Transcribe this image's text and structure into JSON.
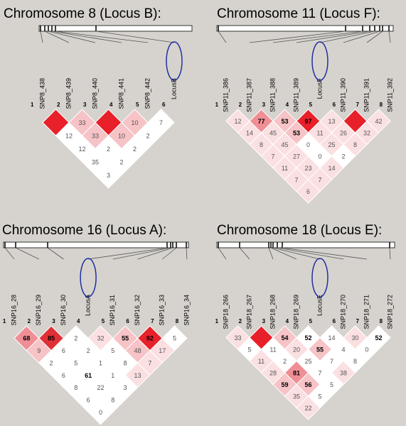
{
  "panels": [
    {
      "title": "Chromosome 8 (Locus B):",
      "markers": [
        "SNP8_438",
        "SNP8_439",
        "SNP8_440",
        "SNP8_441",
        "SNP8_442",
        "LocusB"
      ],
      "indices": [
        1,
        2,
        3,
        4,
        5,
        6
      ],
      "cells": [
        [
          null,
          33,
          null,
          10,
          7
        ],
        [
          12,
          33,
          10,
          2
        ],
        [
          12,
          2,
          2
        ],
        [
          35,
          2
        ],
        [
          3
        ]
      ],
      "cell_colors": [
        [
          "#e8202a",
          "#f6c3c7",
          "#e8202a",
          "#f6c3c7",
          "#ffffff"
        ],
        [
          "#ffffff",
          "#f6c3c7",
          "#f6c3c7",
          "#ffffff"
        ],
        [
          "#ffffff",
          "#ffffff",
          "#ffffff"
        ],
        [
          "#ffffff",
          "#ffffff"
        ],
        [
          "#ffffff"
        ]
      ]
    },
    {
      "title": "Chromosome 11 (Locus F):",
      "markers": [
        "SNP11_386",
        "SNP11_387",
        "SNP11_388",
        "SNP11_389",
        "LocusF",
        "SNP11_390",
        "SNP11_391",
        "SNP11_392"
      ],
      "indices": [
        1,
        2,
        3,
        4,
        5,
        6,
        7,
        8
      ],
      "cells": [
        [
          12,
          77,
          53,
          97,
          13,
          null,
          42
        ],
        [
          14,
          45,
          53,
          11,
          26,
          32
        ],
        [
          8,
          45,
          0,
          25,
          8
        ],
        [
          7,
          27,
          0,
          2
        ],
        [
          11,
          23,
          14
        ],
        [
          7,
          7
        ],
        [
          6
        ]
      ],
      "cell_colors": [
        [
          "#fbe0e2",
          "#ef8f95",
          "#f6c3c7",
          "#e8202a",
          "#fbe0e2",
          "#e8202a",
          "#fbe0e2"
        ],
        [
          "#fbe0e2",
          "#fbe0e2",
          "#f6c3c7",
          "#fbe0e2",
          "#fbe0e2",
          "#fbe0e2"
        ],
        [
          "#fbe0e2",
          "#fbe0e2",
          "#ffffff",
          "#fbe0e2",
          "#fbe0e2"
        ],
        [
          "#fbe0e2",
          "#fbe0e2",
          "#ffffff",
          "#ffffff"
        ],
        [
          "#fbe0e2",
          "#fbe0e2",
          "#fbe0e2"
        ],
        [
          "#fbe0e2",
          "#fbe0e2"
        ],
        [
          "#fbe0e2"
        ]
      ]
    },
    {
      "title": "Chromosome 16 (Locus A):",
      "markers": [
        "SNP16_28",
        "SNP16_29",
        "SNP16_30",
        "LocusA",
        "SNP16_31",
        "SNP16_32",
        "SNP16_33",
        "SNP16_34"
      ],
      "indices": [
        1,
        2,
        3,
        4,
        5,
        6,
        7,
        8
      ],
      "cells": [
        [
          68,
          85,
          2,
          32,
          55,
          92,
          5
        ],
        [
          9,
          6,
          2,
          5,
          48,
          17
        ],
        [
          2,
          5,
          1,
          8,
          7
        ],
        [
          6,
          61,
          1,
          13
        ],
        [
          8,
          22,
          3
        ],
        [
          6,
          8
        ],
        [
          0
        ]
      ],
      "cell_colors": [
        [
          "#ef8f95",
          "#e03035",
          "#ffffff",
          "#fbe0e2",
          "#f6c3c7",
          "#e8202a",
          "#ffffff"
        ],
        [
          "#f6c3c7",
          "#ffffff",
          "#ffffff",
          "#ffffff",
          "#f6c3c7",
          "#fbe0e2"
        ],
        [
          "#ffffff",
          "#ffffff",
          "#ffffff",
          "#ffffff",
          "#fbe0e2"
        ],
        [
          "#ffffff",
          "#ffffff",
          "#ffffff",
          "#fbe0e2"
        ],
        [
          "#ffffff",
          "#ffffff",
          "#ffffff"
        ],
        [
          "#ffffff",
          "#ffffff"
        ],
        [
          "#ffffff"
        ]
      ]
    },
    {
      "title": "Chromosome 18 (Locus E):",
      "markers": [
        "SNP18_266",
        "SNP18_267",
        "SNP18_268",
        "SNP18_269",
        "LocusE",
        "SNP18_270",
        "SNP18_271",
        "SNP18_272"
      ],
      "indices": [
        1,
        2,
        3,
        4,
        5,
        6,
        7,
        8
      ],
      "cells": [
        [
          33,
          null,
          54,
          52,
          14,
          30,
          52
        ],
        [
          5,
          11,
          20,
          55,
          4,
          0
        ],
        [
          11,
          2,
          25,
          7,
          8
        ],
        [
          28,
          81,
          7,
          38
        ],
        [
          59,
          56,
          5
        ],
        [
          35,
          5
        ],
        [
          22
        ]
      ],
      "cell_colors": [
        [
          "#fbe0e2",
          "#e8202a",
          "#f6c3c7",
          "#ffffff",
          "#ffffff",
          "#fbe0e2",
          "#ffffff"
        ],
        [
          "#ffffff",
          "#ffffff",
          "#fbe0e2",
          "#f6c3c7",
          "#ffffff",
          "#ffffff"
        ],
        [
          "#fbe0e2",
          "#ffffff",
          "#ffffff",
          "#ffffff",
          "#ffffff"
        ],
        [
          "#fbe0e2",
          "#ef8f95",
          "#ffffff",
          "#fbe0e2"
        ],
        [
          "#f6c3c7",
          "#f6c3c7",
          "#ffffff"
        ],
        [
          "#fbe0e2",
          "#ffffff"
        ],
        [
          "#fbe0e2"
        ]
      ]
    }
  ]
}
